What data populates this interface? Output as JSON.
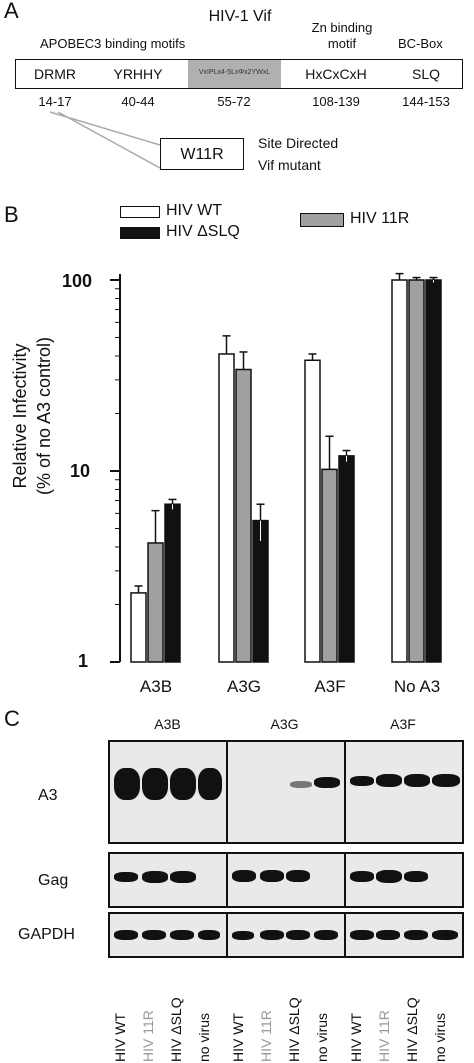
{
  "panel_a": {
    "letter": "A",
    "title": "HIV-1 Vif",
    "header_apobec": "APOBEC3 binding motifs",
    "header_zn_line1": "Zn binding",
    "header_zn_line2": "motif",
    "header_bcbox": "BC-Box",
    "motifs": [
      {
        "name": "DRMR",
        "range": "14-17"
      },
      {
        "name": "YRHHY",
        "range": "40-44"
      },
      {
        "name": "VxIPLx4-5LxΦx2YWxL",
        "range": "55-72"
      },
      {
        "name": "HxCxCxH",
        "range": "108-139"
      },
      {
        "name": "SLQ",
        "range": "144-153"
      }
    ],
    "mutant_box": "W11R",
    "mutant_line1": "Site Directed",
    "mutant_line2": "Vif mutant",
    "highlight_color": "#b0b0b0"
  },
  "panel_b": {
    "letter": "B",
    "legend": [
      {
        "label": "HIV WT",
        "color": "#ffffff"
      },
      {
        "label": "HIV ΔSLQ",
        "color": "#111111"
      },
      {
        "label": "HIV 11R",
        "color": "#a0a0a0"
      }
    ],
    "ylabel_line1": "Relative Infectivity",
    "ylabel_line2": "(% of no A3 control)",
    "yticks": [
      "1",
      "10",
      "100"
    ]
  },
  "chart_data": {
    "type": "bar",
    "scale": "log",
    "ylim": [
      1,
      100
    ],
    "ylabel": "Relative Infectivity (% of no A3 control)",
    "categories": [
      "A3B",
      "A3G",
      "A3F",
      "No A3"
    ],
    "series": [
      {
        "name": "HIV WT",
        "color": "#ffffff",
        "values": [
          2.3,
          41,
          38,
          100
        ],
        "errors": [
          0.2,
          10,
          3,
          8
        ]
      },
      {
        "name": "HIV 11R",
        "color": "#a0a0a0",
        "values": [
          4.2,
          34,
          10.2,
          100
        ],
        "errors": [
          2,
          8,
          5,
          3
        ]
      },
      {
        "name": "HIV ΔSLQ",
        "color": "#111111",
        "values": [
          6.7,
          5.5,
          12,
          100
        ],
        "errors": [
          0.4,
          1.2,
          0.8,
          3
        ]
      }
    ],
    "grid": false,
    "legend_position": "top"
  },
  "panel_c": {
    "letter": "C",
    "groups": [
      "A3B",
      "A3G",
      "A3F"
    ],
    "rows": [
      "A3",
      "Gag",
      "GAPDH"
    ],
    "lanes": [
      "HIV WT",
      "HIV 11R",
      "HIV ΔSLQ",
      "no virus",
      "HIV WT",
      "HIV 11R",
      "HIV ΔSLQ",
      "no virus",
      "HIV WT",
      "HIV 11R",
      "HIV ΔSLQ",
      "no virus"
    ],
    "lane_colors": [
      "#111111",
      "#999999",
      "#111111",
      "#111111",
      "#111111",
      "#999999",
      "#111111",
      "#111111",
      "#111111",
      "#999999",
      "#111111",
      "#111111"
    ]
  }
}
